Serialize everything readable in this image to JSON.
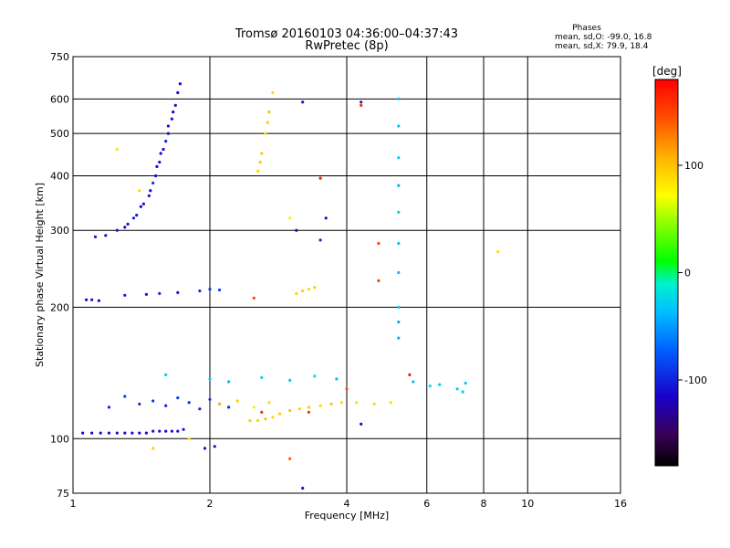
{
  "chart_data": {
    "type": "scatter",
    "title": "Tromsø 20160103 04:36:00–04:37:43",
    "subtitle": "RwPretec (8p)",
    "xlabel": "Frequency [MHz]",
    "ylabel": "Stationary phase Virtual Height [km]",
    "x_scale": "log2",
    "y_scale": "log",
    "xlim": [
      1,
      16
    ],
    "ylim": [
      75,
      750
    ],
    "x_ticks": [
      1,
      2,
      4,
      6,
      8,
      10,
      16
    ],
    "x_tick_labels": [
      "1",
      "2",
      "4",
      "6",
      "8",
      "10",
      "16"
    ],
    "y_ticks": [
      75,
      100,
      200,
      300,
      400,
      500,
      600,
      750
    ],
    "y_tick_labels": [
      "75",
      "100",
      "200",
      "300",
      "400",
      "500",
      "600",
      "750"
    ],
    "grid": true,
    "colorbar": {
      "label": "[deg]",
      "range": [
        -180,
        180
      ],
      "ticks": [
        -100,
        0,
        100
      ],
      "tick_labels": [
        "-100",
        "0",
        "100"
      ]
    },
    "stats": {
      "heading": "Phases",
      "line_o": "mean, sd,O:  -99.0,  16.8",
      "line_x": "mean, sd,X:   79.9,  18.4"
    },
    "series": [
      {
        "points": [
          [
            1.05,
            103,
            -110
          ],
          [
            1.1,
            103,
            -112
          ],
          [
            1.15,
            103,
            -108
          ],
          [
            1.2,
            103,
            -110
          ],
          [
            1.25,
            103,
            -111
          ],
          [
            1.3,
            103,
            -109
          ],
          [
            1.35,
            103,
            -110
          ],
          [
            1.4,
            103,
            -112
          ],
          [
            1.45,
            103,
            -110
          ],
          [
            1.5,
            104,
            -108
          ],
          [
            1.55,
            104,
            -110
          ],
          [
            1.6,
            104,
            -111
          ],
          [
            1.65,
            104,
            -109
          ],
          [
            1.7,
            104,
            -110
          ],
          [
            1.75,
            105,
            -108
          ],
          [
            1.07,
            208,
            -110
          ],
          [
            1.1,
            208,
            -108
          ],
          [
            1.14,
            207,
            -112
          ],
          [
            1.3,
            213,
            -105
          ],
          [
            1.45,
            214,
            -108
          ],
          [
            1.55,
            215,
            -100
          ],
          [
            1.7,
            216,
            -110
          ],
          [
            1.9,
            218,
            -95
          ],
          [
            2.0,
            220,
            -90
          ],
          [
            2.1,
            219,
            -85
          ],
          [
            1.12,
            290,
            -110
          ],
          [
            1.18,
            292,
            -112
          ],
          [
            1.25,
            300,
            -108
          ],
          [
            1.32,
            310,
            -110
          ],
          [
            1.38,
            325,
            -108
          ],
          [
            1.43,
            345,
            -110
          ],
          [
            1.48,
            370,
            -112
          ],
          [
            1.52,
            400,
            -110
          ],
          [
            1.55,
            430,
            -108
          ],
          [
            1.58,
            460,
            -110
          ],
          [
            1.62,
            500,
            -112
          ],
          [
            1.65,
            540,
            -110
          ],
          [
            1.68,
            580,
            -108
          ],
          [
            1.7,
            620,
            -110
          ],
          [
            1.72,
            650,
            -112
          ],
          [
            1.5,
            385,
            -95
          ],
          [
            1.56,
            450,
            -115
          ],
          [
            1.62,
            520,
            -105
          ],
          [
            1.66,
            560,
            -118
          ],
          [
            1.6,
            480,
            -100
          ],
          [
            1.53,
            420,
            -112
          ],
          [
            1.47,
            360,
            -106
          ],
          [
            1.41,
            340,
            -114
          ],
          [
            1.36,
            320,
            -102
          ],
          [
            1.3,
            305,
            -118
          ],
          [
            1.2,
            118,
            -100
          ],
          [
            1.3,
            125,
            -85
          ],
          [
            1.4,
            120,
            -95
          ],
          [
            1.5,
            122,
            -90
          ],
          [
            1.6,
            119,
            -100
          ],
          [
            1.7,
            124,
            -88
          ],
          [
            1.8,
            121,
            -95
          ],
          [
            1.9,
            117,
            -98
          ],
          [
            2.0,
            123,
            -92
          ],
          [
            2.1,
            120,
            -100
          ],
          [
            2.2,
            118,
            -96
          ],
          [
            1.95,
            95,
            -110
          ],
          [
            2.05,
            96,
            -112
          ],
          [
            3.2,
            77,
            -108
          ],
          [
            4.3,
            108,
            -115
          ],
          [
            4.3,
            590,
            -105
          ],
          [
            3.2,
            590,
            -110
          ],
          [
            3.1,
            300,
            -112
          ],
          [
            3.5,
            285,
            -100
          ],
          [
            3.6,
            320,
            -110
          ]
        ]
      },
      {
        "points": [
          [
            2.45,
            110,
            95
          ],
          [
            2.55,
            110,
            92
          ],
          [
            2.65,
            111,
            98
          ],
          [
            2.75,
            112,
            90
          ],
          [
            2.85,
            114,
            96
          ],
          [
            3.0,
            116,
            100
          ],
          [
            3.15,
            117,
            92
          ],
          [
            3.3,
            118,
            95
          ],
          [
            3.5,
            119,
            90
          ],
          [
            3.7,
            120,
            98
          ],
          [
            3.9,
            121,
            88
          ],
          [
            4.2,
            121,
            86
          ],
          [
            4.6,
            120,
            90
          ],
          [
            5.0,
            121,
            85
          ],
          [
            2.55,
            410,
            92
          ],
          [
            2.6,
            450,
            95
          ],
          [
            2.65,
            500,
            90
          ],
          [
            2.7,
            560,
            98
          ],
          [
            2.75,
            620,
            88
          ],
          [
            2.58,
            430,
            100
          ],
          [
            2.68,
            530,
            94
          ],
          [
            3.1,
            215,
            92
          ],
          [
            3.2,
            218,
            95
          ],
          [
            3.3,
            220,
            90
          ],
          [
            3.4,
            222,
            96
          ],
          [
            2.1,
            120,
            100
          ],
          [
            2.3,
            122,
            95
          ],
          [
            2.5,
            118,
            80
          ],
          [
            2.7,
            121,
            90
          ],
          [
            1.4,
            370,
            90
          ],
          [
            1.25,
            460,
            85
          ],
          [
            1.5,
            95,
            96
          ],
          [
            1.8,
            100,
            88
          ],
          [
            3.0,
            320,
            80
          ],
          [
            8.6,
            268,
            88
          ]
        ]
      },
      {
        "points": [
          [
            5.2,
            600,
            -40
          ],
          [
            5.2,
            520,
            -35
          ],
          [
            5.2,
            440,
            -30
          ],
          [
            5.2,
            380,
            -42
          ],
          [
            5.2,
            330,
            -25
          ],
          [
            5.2,
            280,
            -35
          ],
          [
            5.2,
            240,
            -38
          ],
          [
            5.2,
            200,
            -30
          ],
          [
            5.2,
            185,
            -45
          ],
          [
            5.2,
            170,
            -40
          ],
          [
            5.6,
            135,
            -35
          ],
          [
            6.1,
            132,
            -20
          ],
          [
            6.4,
            133,
            -30
          ],
          [
            7.0,
            130,
            -28
          ],
          [
            7.3,
            134,
            -32
          ],
          [
            7.2,
            128,
            -25
          ],
          [
            1.6,
            140,
            -30
          ],
          [
            2.0,
            137,
            -35
          ],
          [
            2.2,
            135,
            -40
          ],
          [
            2.6,
            138,
            -25
          ],
          [
            3.0,
            136,
            -30
          ],
          [
            3.4,
            139,
            -20
          ],
          [
            3.8,
            137,
            -35
          ]
        ]
      },
      {
        "points": [
          [
            4.3,
            580,
            160
          ],
          [
            4.7,
            280,
            150
          ],
          [
            4.7,
            230,
            155
          ],
          [
            5.5,
            140,
            170
          ],
          [
            3.0,
            90,
            140
          ],
          [
            3.3,
            115,
            160
          ],
          [
            2.6,
            115,
            165
          ],
          [
            2.5,
            210,
            150
          ],
          [
            3.5,
            395,
            170
          ],
          [
            4.0,
            130,
            150
          ]
        ]
      }
    ]
  }
}
